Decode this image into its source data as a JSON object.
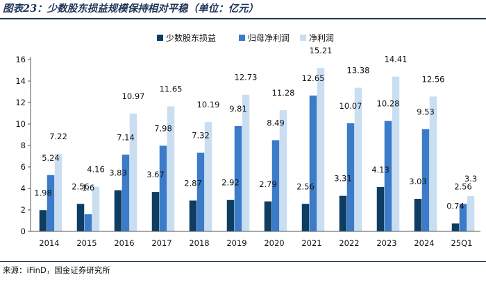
{
  "figure": {
    "title": "图表23：少数股东损益规模保持相对平稳（单位：亿元）",
    "source": "来源：iFinD，国金证券研究所"
  },
  "colors": {
    "series": [
      "#0d3d63",
      "#3b7bc8",
      "#c9def1"
    ],
    "axis": "#555555",
    "text": "#111111"
  },
  "chart_data": {
    "type": "bar",
    "title": "少数股东损益规模保持相对平稳（单位：亿元）",
    "xlabel": "",
    "ylabel": "",
    "ylim": [
      0,
      16
    ],
    "yticks": [
      0,
      2,
      4,
      6,
      8,
      10,
      12,
      14,
      16
    ],
    "grid": false,
    "legend_position": "top",
    "categories": [
      "2014",
      "2015",
      "2016",
      "2017",
      "2018",
      "2019",
      "2020",
      "2021",
      "2022",
      "2023",
      "2024",
      "25Q1"
    ],
    "series": [
      {
        "name": "少数股东损益",
        "values": [
          1.98,
          2.56,
          3.83,
          3.67,
          2.87,
          2.92,
          2.79,
          2.56,
          3.31,
          4.13,
          3.03,
          0.74
        ]
      },
      {
        "name": "归母净利润",
        "values": [
          5.24,
          1.6,
          7.14,
          7.98,
          7.32,
          9.81,
          8.49,
          12.65,
          10.07,
          10.28,
          9.53,
          2.56
        ]
      },
      {
        "name": "净利润",
        "values": [
          7.22,
          4.16,
          10.97,
          11.65,
          10.19,
          12.73,
          11.28,
          15.21,
          13.38,
          14.41,
          12.56,
          3.3
        ]
      }
    ]
  }
}
